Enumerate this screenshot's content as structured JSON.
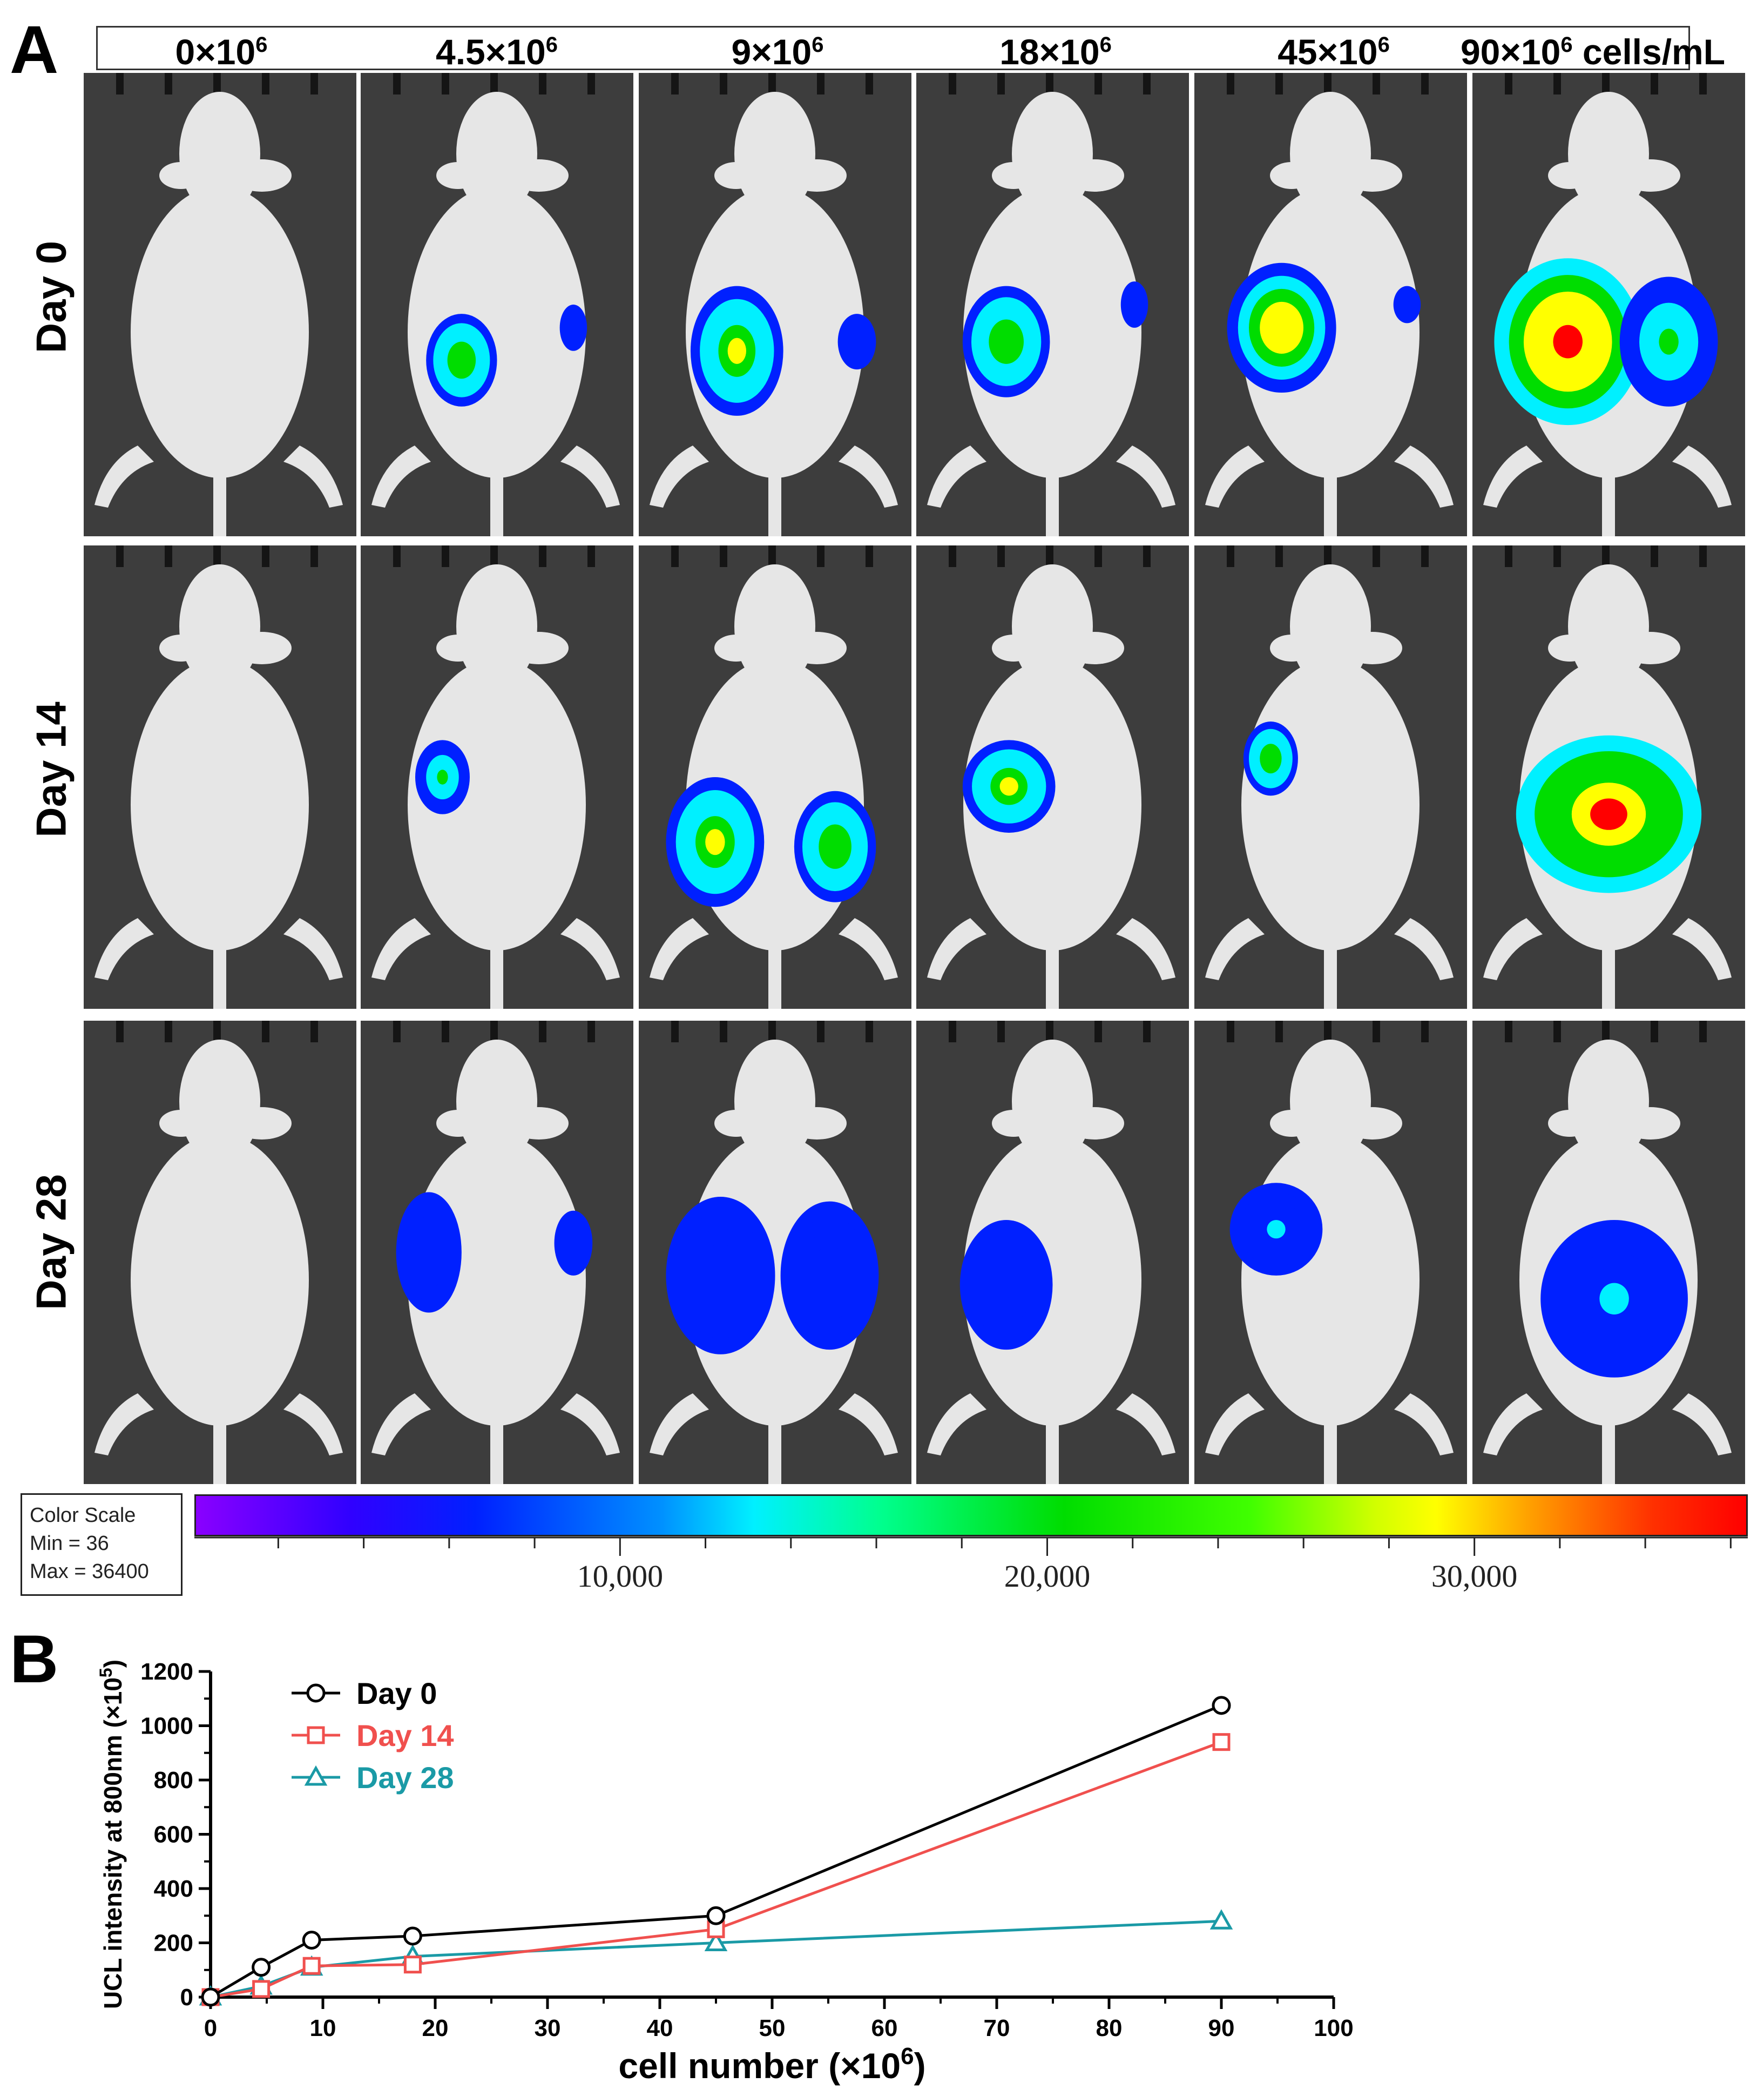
{
  "panel_a": {
    "letter": "A",
    "column_labels": [
      {
        "base": "0×10",
        "sup": "6",
        "suffix": ""
      },
      {
        "base": "4.5×10",
        "sup": "6",
        "suffix": ""
      },
      {
        "base": "9×10",
        "sup": "6",
        "suffix": ""
      },
      {
        "base": "18×10",
        "sup": "6",
        "suffix": ""
      },
      {
        "base": "45×10",
        "sup": "6",
        "suffix": ""
      },
      {
        "base": "90×10",
        "sup": "6",
        "suffix": " cells/mL"
      }
    ],
    "row_labels": [
      "Day 0",
      "Day 14",
      "Day 28"
    ],
    "color_scale": {
      "title": "Color Scale",
      "min_text": "Min = 36",
      "max_text": "Max = 36400",
      "min": 36,
      "max": 36400,
      "tick_labels": [
        "10,000",
        "20,000",
        "30,000"
      ],
      "tick_values": [
        10000,
        20000,
        30000
      ]
    }
  },
  "chart_data": {
    "type": "line",
    "panel_letter": "B",
    "title": "",
    "xlabel_text": "cell number (×10",
    "xlabel_sup": "6",
    "xlabel_end": ")",
    "ylabel_text": "UCL intensity at 800nm (×10",
    "ylabel_sup": "5",
    "ylabel_end": ")",
    "xlim": [
      0,
      100
    ],
    "ylim": [
      0,
      1200
    ],
    "xticks": [
      0,
      10,
      20,
      30,
      40,
      50,
      60,
      70,
      80,
      90,
      100
    ],
    "yticks": [
      0,
      200,
      400,
      600,
      800,
      1000,
      1200
    ],
    "x": [
      0,
      4.5,
      9,
      18,
      45,
      90
    ],
    "legend_position": "top-left",
    "series": [
      {
        "name": "Day 0",
        "marker": "circle",
        "color": "#000000",
        "values": [
          0,
          110,
          210,
          225,
          300,
          1075
        ]
      },
      {
        "name": "Day 14",
        "marker": "square",
        "color": "#f0504e",
        "values": [
          0,
          30,
          115,
          120,
          250,
          940
        ]
      },
      {
        "name": "Day 28",
        "marker": "triangle",
        "color": "#1a9aa6",
        "values": [
          0,
          40,
          110,
          150,
          200,
          280
        ]
      }
    ]
  }
}
